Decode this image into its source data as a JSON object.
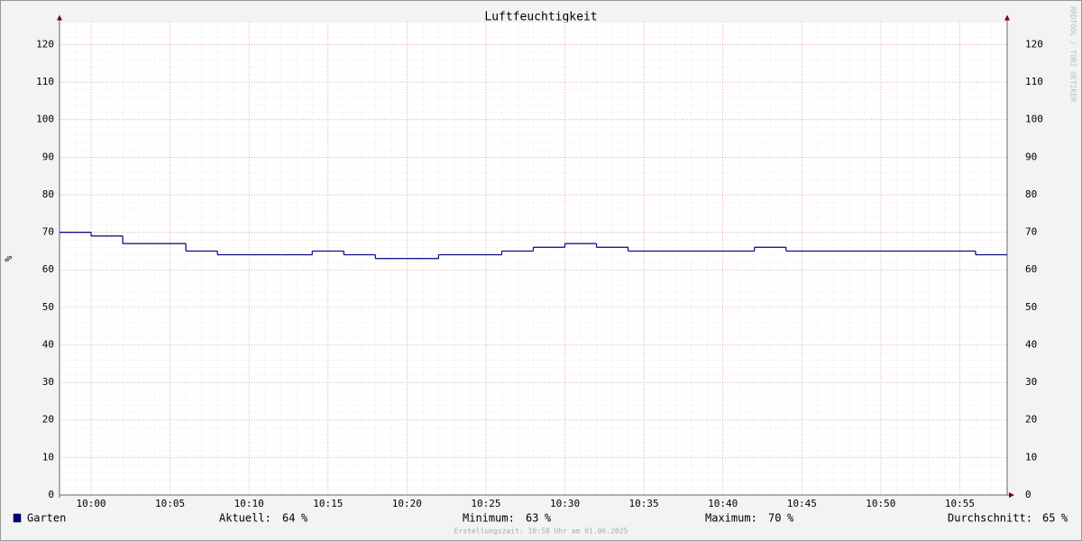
{
  "chart_data": {
    "type": "step-line",
    "title": "Luftfeuchtigkeit",
    "y_label": "%",
    "watermark": "RRDTOOL / TOBI OETIKER",
    "x": [
      "09:58",
      "10:00",
      "10:02",
      "10:04",
      "10:06",
      "10:08",
      "10:10",
      "10:12",
      "10:14",
      "10:16",
      "10:18",
      "10:20",
      "10:22",
      "10:24",
      "10:26",
      "10:28",
      "10:30",
      "10:32",
      "10:34",
      "10:36",
      "10:38",
      "10:40",
      "10:42",
      "10:44",
      "10:46",
      "10:48",
      "10:50",
      "10:52",
      "10:54",
      "10:56"
    ],
    "xlim": [
      "09:58",
      "10:58"
    ],
    "xticks": [
      "10:00",
      "10:05",
      "10:10",
      "10:15",
      "10:20",
      "10:25",
      "10:30",
      "10:35",
      "10:40",
      "10:45",
      "10:50",
      "10:55"
    ],
    "ylim": [
      0,
      126
    ],
    "yticks": [
      0,
      10,
      20,
      30,
      40,
      50,
      60,
      70,
      80,
      90,
      100,
      110,
      120
    ],
    "grid": true,
    "series": [
      {
        "name": "Garten",
        "color": "#000080",
        "values": [
          70,
          69,
          67,
          67,
          65,
          64,
          64,
          64,
          65,
          64,
          63,
          63,
          64,
          64,
          65,
          66,
          67,
          66,
          65,
          65,
          65,
          65,
          66,
          65,
          65,
          65,
          65,
          65,
          65,
          64
        ]
      }
    ],
    "stats": [
      {
        "label": "Aktuell:",
        "value": 64,
        "unit": "%"
      },
      {
        "label": "Minimum:",
        "value": 63,
        "unit": "%"
      },
      {
        "label": "Maximum:",
        "value": 70,
        "unit": "%"
      },
      {
        "label": "Durchschnitt:",
        "value": 65,
        "unit": "%"
      }
    ],
    "footer": "Erstellungszeit: 10:58 Uhr am 01.06.2025"
  }
}
